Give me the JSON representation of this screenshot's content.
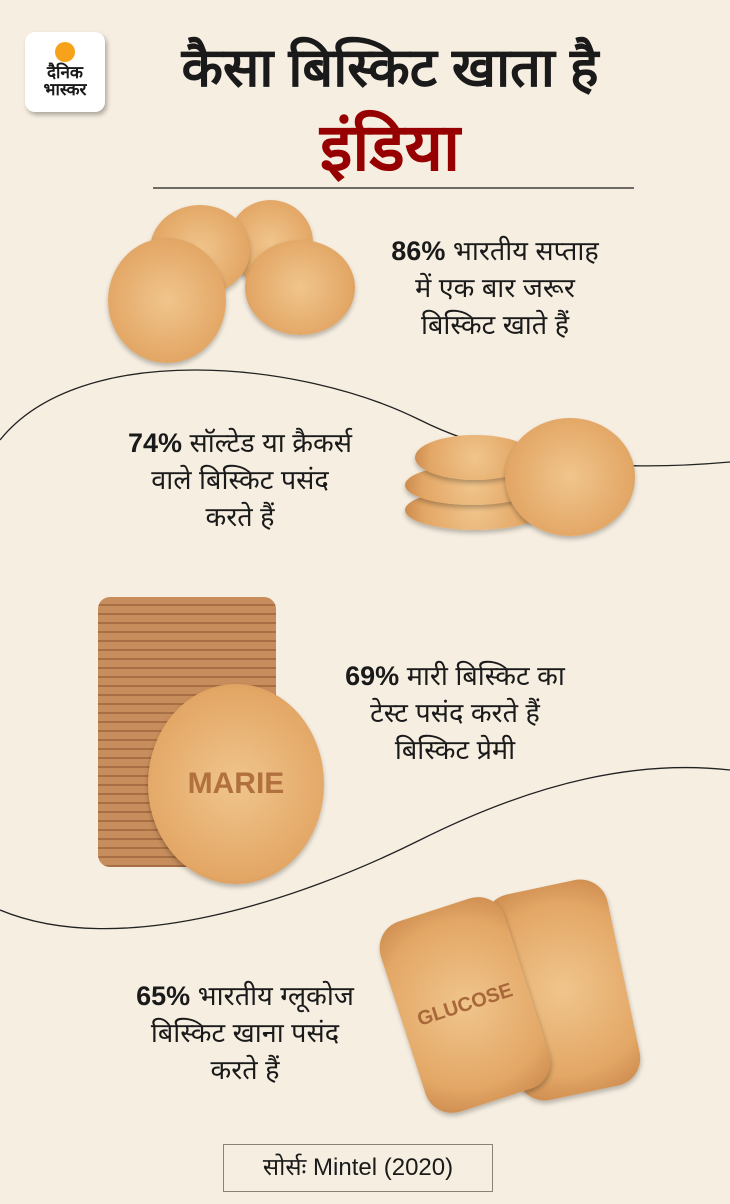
{
  "logo": {
    "line1": "दैनिक",
    "line2": "भास्कर"
  },
  "header": {
    "title_line1": "कैसा बिस्किट खाता है",
    "title_line2": "इंडिया"
  },
  "facts": [
    {
      "percent": "86%",
      "text": "भारतीय सप्ताह",
      "line2": "में एक बार जरूर",
      "line3": "बिस्किट खाते हैं"
    },
    {
      "percent": "74%",
      "text": "सॉल्टेड या क्रैकर्स",
      "line2": "वाले बिस्किट पसंद",
      "line3": "करते हैं"
    },
    {
      "percent": "69%",
      "text": "मारी बिस्किट का",
      "line2": "टेस्ट पसंद करते हैं",
      "line3": "बिस्किट प्रेमी"
    },
    {
      "percent": "65%",
      "text": "भारतीय ग्लूकोज",
      "line2": "बिस्किट खाना पसंद",
      "line3": "करते हैं"
    }
  ],
  "images": {
    "marie_text": "MARIE",
    "glucose_text": "GLUCOSE"
  },
  "source": "सोर्सः Mintel (2020)",
  "colors": {
    "background": "#f6eee1",
    "accent": "#960000",
    "logo_sun": "#f7a21b"
  }
}
